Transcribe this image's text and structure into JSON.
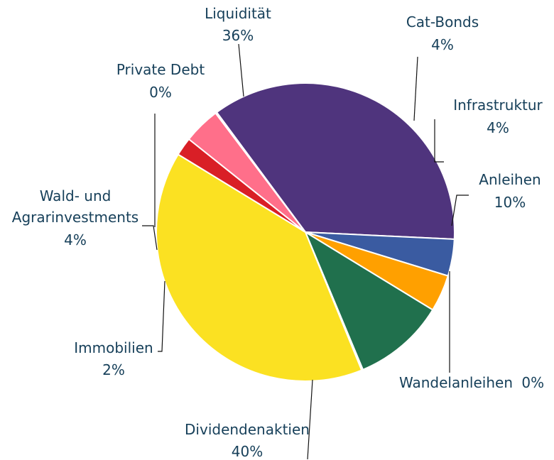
{
  "chart_data": {
    "type": "pie",
    "title": "",
    "slices": [
      {
        "label": "Liquidität",
        "value_label": "36%",
        "value": 36,
        "color": "#4f347d"
      },
      {
        "label": "Cat-Bonds",
        "value_label": "4%",
        "value": 4,
        "color": "#3a5ba1"
      },
      {
        "label": "Infrastruktur",
        "value_label": "4%",
        "value": 4,
        "color": "#ffa000"
      },
      {
        "label": "Anleihen",
        "value_label": "10%",
        "value": 10,
        "color": "#20704d"
      },
      {
        "label": "Wandelanleihen",
        "value_label": "0%",
        "value": 0.15,
        "color": "#2e8b57"
      },
      {
        "label": "Dividendenaktien",
        "value_label": "40%",
        "value": 40,
        "color": "#fbe122"
      },
      {
        "label": "Immobilien",
        "value_label": "2%",
        "value": 2,
        "color": "#d91f26"
      },
      {
        "label": "Wald- und Agrarinvestments",
        "value_label": "4%",
        "value": 4,
        "color": "#ff6f8a"
      },
      {
        "label": "Private Debt",
        "value_label": "0%",
        "value": 0.15,
        "color": "#8a2f7a"
      }
    ],
    "grid": false,
    "legend": "none"
  }
}
